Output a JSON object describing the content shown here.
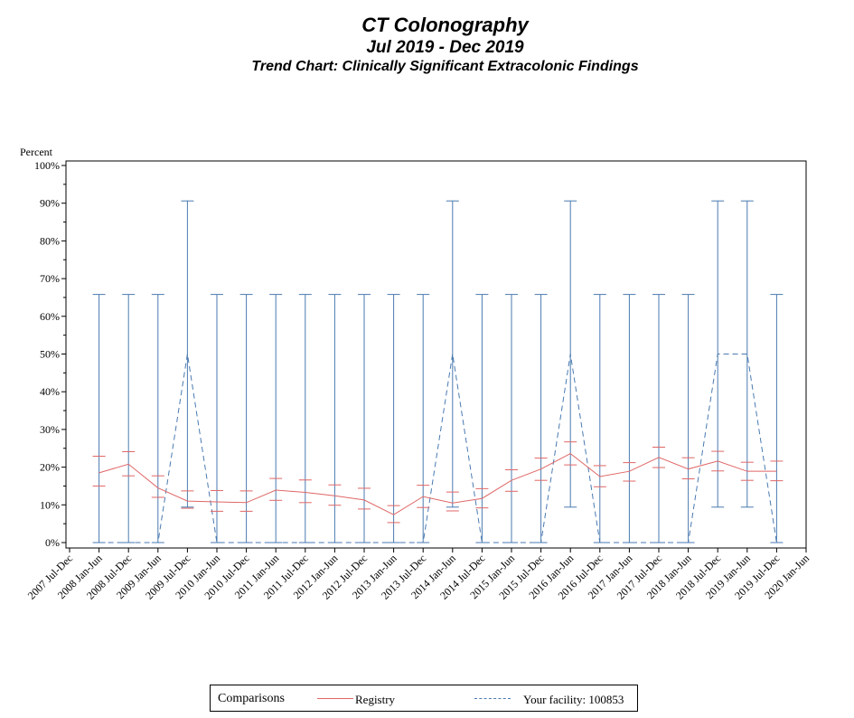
{
  "title": "CT Colonography",
  "subtitle": "Jul 2019 - Dec 2019",
  "chart_title": "Trend Chart: Clinically Significant Extracolonic Findings",
  "colors": {
    "registry": "#e06666",
    "facility": "#4a7ab0",
    "axis": "#000000"
  },
  "chart_data": {
    "type": "line",
    "title": "Trend Chart: Clinically Significant Extracolonic Findings",
    "ylabel": "Percent",
    "xlabel": "",
    "ylim": [
      0,
      100
    ],
    "yticks": [
      "0%",
      "10%",
      "20%",
      "30%",
      "40%",
      "50%",
      "60%",
      "70%",
      "80%",
      "90%",
      "100%"
    ],
    "categories": [
      "2007 Jul-Dec",
      "2008 Jan-Jun",
      "2008 Jul-Dec",
      "2009 Jan-Jun",
      "2009 Jul-Dec",
      "2010 Jan-Jun",
      "2010 Jul-Dec",
      "2011 Jan-Jun",
      "2011 Jul-Dec",
      "2012 Jan-Jun",
      "2012 Jul-Dec",
      "2013 Jan-Jun",
      "2013 Jul-Dec",
      "2014 Jan-Jun",
      "2014 Jul-Dec",
      "2015 Jan-Jun",
      "2015 Jul-Dec",
      "2016 Jan-Jun",
      "2016 Jul-Dec",
      "2017 Jan-Jun",
      "2017 Jul-Dec",
      "2018 Jan-Jun",
      "2018 Jul-Dec",
      "2019 Jan-Jun",
      "2019 Jul-Dec",
      "2020 Jan-Jun"
    ],
    "registry": {
      "name": "Registry",
      "values": [
        18.5,
        20.8,
        14.5,
        11,
        10.8,
        10.6,
        13.9,
        13.3,
        12.4,
        11.3,
        7.4,
        12.2,
        10.5,
        11.7,
        16.5,
        19.5,
        23.6,
        17.5,
        18.9,
        22.6,
        19.5,
        21.6,
        18.9,
        18.9
      ],
      "upper": [
        22.9,
        24.1,
        17.7,
        13.7,
        13.8,
        13.7,
        17.0,
        16.6,
        15.3,
        14.4,
        9.8,
        15.2,
        13.4,
        14.3,
        19.3,
        22.4,
        26.7,
        20.4,
        21.2,
        25.3,
        22.5,
        24.2,
        21.3,
        21.6
      ],
      "lower": [
        15.0,
        17.7,
        12.0,
        9.1,
        8.3,
        8.3,
        11.2,
        10.6,
        9.9,
        8.9,
        5.3,
        9.3,
        8.4,
        9.2,
        13.6,
        16.5,
        20.6,
        14.8,
        16.3,
        19.9,
        16.9,
        19.0,
        16.5,
        16.4
      ],
      "index_offset": 1
    },
    "facility": {
      "name": "Your facility: 100853",
      "values": [
        0,
        0,
        0,
        50,
        0,
        0,
        0,
        0,
        0,
        0,
        0,
        0,
        50,
        0,
        0,
        0,
        50,
        0,
        0,
        0,
        0,
        50,
        50,
        0
      ],
      "upper": [
        65.8,
        65.8,
        65.8,
        90.6,
        65.8,
        65.8,
        65.8,
        65.8,
        65.8,
        65.8,
        65.8,
        65.8,
        90.6,
        65.8,
        65.8,
        65.8,
        90.6,
        65.8,
        65.8,
        65.8,
        65.8,
        90.6,
        90.6,
        65.8
      ],
      "lower": [
        0,
        0,
        0,
        9.4,
        0,
        0,
        0,
        0,
        0,
        0,
        0,
        0,
        9.4,
        0,
        0,
        0,
        9.4,
        0,
        0,
        0,
        0,
        9.4,
        9.4,
        0
      ],
      "index_offset": 1
    }
  },
  "legend": {
    "title": "Comparisons",
    "registry_label": "Registry",
    "facility_label": "Your facility: 100853"
  }
}
